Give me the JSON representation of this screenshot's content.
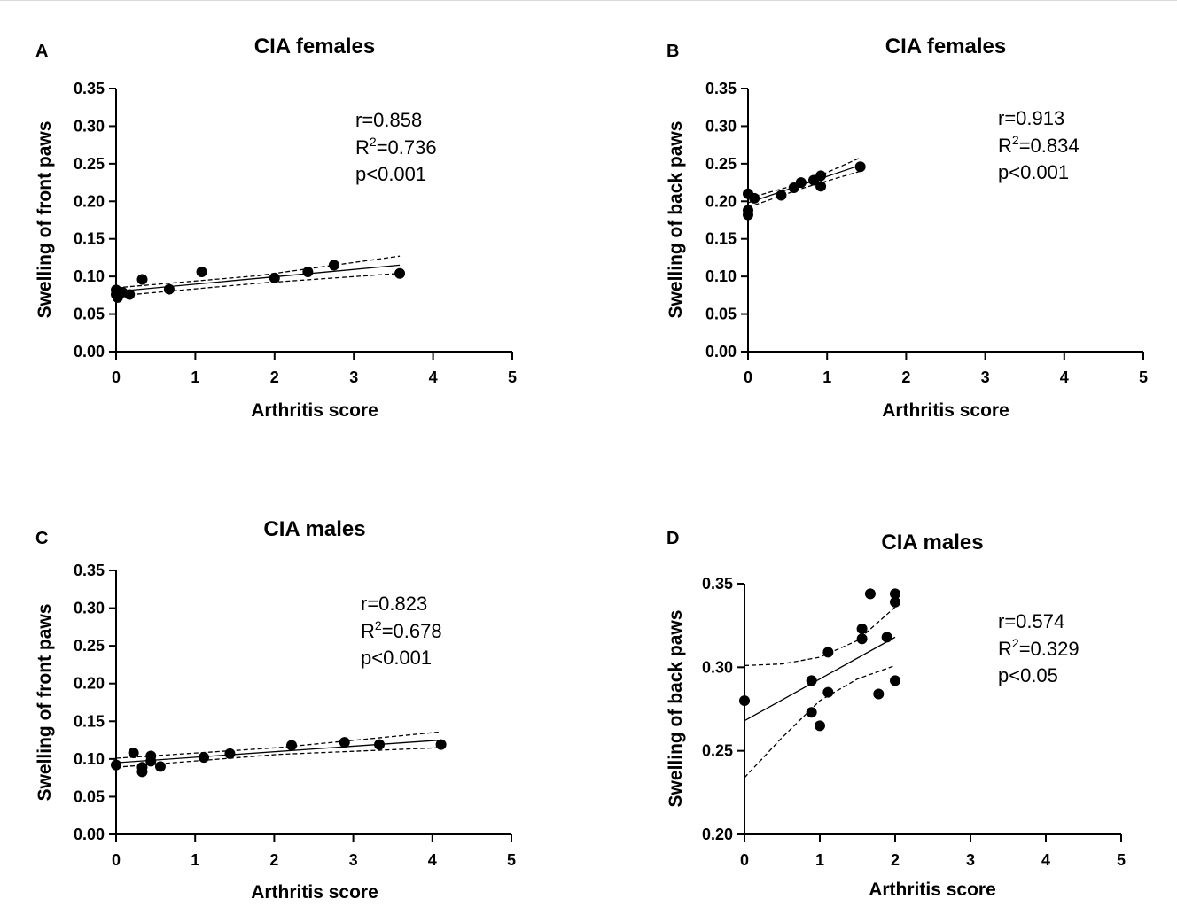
{
  "chart_data": [
    {
      "panel": "A",
      "type": "scatter",
      "title": "CIA females",
      "xlabel": "Arthritis score",
      "ylabel": "Swelling of front paws",
      "xlim": [
        0,
        5
      ],
      "ylim": [
        0,
        0.35
      ],
      "xticks": [
        "0",
        "1",
        "2",
        "3",
        "4",
        "5"
      ],
      "yticks": [
        "0.00",
        "0.05",
        "0.10",
        "0.15",
        "0.20",
        "0.25",
        "0.30",
        "0.35"
      ],
      "stats": {
        "r": "r=0.858",
        "r2_prefix": "R",
        "r2_sup": "2",
        "r2_value": "=0.736",
        "p": "p<0.001"
      },
      "points": [
        {
          "x": 0.0,
          "y": 0.082
        },
        {
          "x": 0.0,
          "y": 0.076
        },
        {
          "x": 0.02,
          "y": 0.072
        },
        {
          "x": 0.08,
          "y": 0.079
        },
        {
          "x": 0.17,
          "y": 0.076
        },
        {
          "x": 0.33,
          "y": 0.096
        },
        {
          "x": 0.67,
          "y": 0.083
        },
        {
          "x": 1.08,
          "y": 0.106
        },
        {
          "x": 2.0,
          "y": 0.098
        },
        {
          "x": 2.42,
          "y": 0.106
        },
        {
          "x": 2.75,
          "y": 0.115
        },
        {
          "x": 3.58,
          "y": 0.104
        }
      ],
      "fit": {
        "x": [
          0,
          3.58
        ],
        "y": [
          0.08,
          0.115
        ]
      },
      "ci_upper": [
        {
          "x": 0,
          "y": 0.085
        },
        {
          "x": 1.79,
          "y": 0.101
        },
        {
          "x": 3.58,
          "y": 0.127
        }
      ],
      "ci_lower": [
        {
          "x": 0,
          "y": 0.074
        },
        {
          "x": 1.79,
          "y": 0.091
        },
        {
          "x": 3.58,
          "y": 0.104
        }
      ]
    },
    {
      "panel": "B",
      "type": "scatter",
      "title": "CIA females",
      "xlabel": "Arthritis score",
      "ylabel": "Swelling of back paws",
      "xlim": [
        0,
        5
      ],
      "ylim": [
        0,
        0.35
      ],
      "xticks": [
        "0",
        "1",
        "2",
        "3",
        "4",
        "5"
      ],
      "yticks": [
        "0.00",
        "0.05",
        "0.10",
        "0.15",
        "0.20",
        "0.25",
        "0.30",
        "0.35"
      ],
      "stats": {
        "r": "r=0.913",
        "r2_prefix": "R",
        "r2_sup": "2",
        "r2_value": "=0.834",
        "p": "p<0.001"
      },
      "points": [
        {
          "x": 0.0,
          "y": 0.21
        },
        {
          "x": 0.0,
          "y": 0.188
        },
        {
          "x": 0.0,
          "y": 0.182
        },
        {
          "x": 0.08,
          "y": 0.204
        },
        {
          "x": 0.42,
          "y": 0.208
        },
        {
          "x": 0.58,
          "y": 0.218
        },
        {
          "x": 0.67,
          "y": 0.225
        },
        {
          "x": 0.83,
          "y": 0.228
        },
        {
          "x": 0.92,
          "y": 0.234
        },
        {
          "x": 0.92,
          "y": 0.22
        },
        {
          "x": 1.42,
          "y": 0.246
        }
      ],
      "fit": {
        "x": [
          0,
          1.42
        ],
        "y": [
          0.198,
          0.248
        ]
      },
      "ci_upper": [
        {
          "x": 0,
          "y": 0.204
        },
        {
          "x": 0.71,
          "y": 0.225
        },
        {
          "x": 1.42,
          "y": 0.258
        }
      ],
      "ci_lower": [
        {
          "x": 0,
          "y": 0.192
        },
        {
          "x": 0.71,
          "y": 0.218
        },
        {
          "x": 1.42,
          "y": 0.24
        }
      ]
    },
    {
      "panel": "C",
      "type": "scatter",
      "title": "CIA males",
      "xlabel": "Arthritis score",
      "ylabel": "Swelling of front paws",
      "xlim": [
        0,
        5
      ],
      "ylim": [
        0,
        0.35
      ],
      "xticks": [
        "0",
        "1",
        "2",
        "3",
        "4",
        "5"
      ],
      "yticks": [
        "0.00",
        "0.05",
        "0.10",
        "0.15",
        "0.20",
        "0.25",
        "0.30",
        "0.35"
      ],
      "stats": {
        "r": "r=0.823",
        "r2_prefix": "R",
        "r2_sup": "2",
        "r2_value": "=0.678",
        "p": "p<0.001"
      },
      "points": [
        {
          "x": 0.0,
          "y": 0.092
        },
        {
          "x": 0.22,
          "y": 0.108
        },
        {
          "x": 0.33,
          "y": 0.089
        },
        {
          "x": 0.33,
          "y": 0.083
        },
        {
          "x": 0.44,
          "y": 0.104
        },
        {
          "x": 0.44,
          "y": 0.097
        },
        {
          "x": 0.56,
          "y": 0.09
        },
        {
          "x": 1.11,
          "y": 0.102
        },
        {
          "x": 1.44,
          "y": 0.107
        },
        {
          "x": 2.22,
          "y": 0.118
        },
        {
          "x": 2.89,
          "y": 0.122
        },
        {
          "x": 3.33,
          "y": 0.119
        },
        {
          "x": 4.11,
          "y": 0.119
        }
      ],
      "fit": {
        "x": [
          0,
          4.11
        ],
        "y": [
          0.095,
          0.125
        ]
      },
      "ci_upper": [
        {
          "x": 0,
          "y": 0.101
        },
        {
          "x": 2.05,
          "y": 0.115
        },
        {
          "x": 4.11,
          "y": 0.136
        }
      ],
      "ci_lower": [
        {
          "x": 0,
          "y": 0.089
        },
        {
          "x": 2.05,
          "y": 0.106
        },
        {
          "x": 4.11,
          "y": 0.115
        }
      ]
    },
    {
      "panel": "D",
      "type": "scatter",
      "title": "CIA males",
      "xlabel": "Arthritis score",
      "ylabel": "Swelling of back paws",
      "xlim": [
        0,
        5
      ],
      "ylim": [
        0.2,
        0.35
      ],
      "xticks": [
        "0",
        "1",
        "2",
        "3",
        "4",
        "5"
      ],
      "yticks": [
        "0.20",
        "0.25",
        "0.30",
        "0.35"
      ],
      "stats": {
        "r": "r=0.574",
        "r2_prefix": "R",
        "r2_sup": "2",
        "r2_value": "=0.329",
        "p": "p<0.05"
      },
      "points": [
        {
          "x": 0.0,
          "y": 0.28
        },
        {
          "x": 0.89,
          "y": 0.292
        },
        {
          "x": 0.89,
          "y": 0.273
        },
        {
          "x": 1.0,
          "y": 0.265
        },
        {
          "x": 1.11,
          "y": 0.309
        },
        {
          "x": 1.11,
          "y": 0.285
        },
        {
          "x": 1.56,
          "y": 0.323
        },
        {
          "x": 1.56,
          "y": 0.317
        },
        {
          "x": 1.67,
          "y": 0.344
        },
        {
          "x": 1.78,
          "y": 0.284
        },
        {
          "x": 1.89,
          "y": 0.318
        },
        {
          "x": 2.0,
          "y": 0.344
        },
        {
          "x": 2.0,
          "y": 0.339
        },
        {
          "x": 2.0,
          "y": 0.292
        }
      ],
      "fit": {
        "x": [
          0,
          2.0
        ],
        "y": [
          0.268,
          0.318
        ]
      },
      "ci_upper": [
        {
          "x": 0,
          "y": 0.301
        },
        {
          "x": 0.5,
          "y": 0.302
        },
        {
          "x": 1.0,
          "y": 0.306
        },
        {
          "x": 1.5,
          "y": 0.316
        },
        {
          "x": 2.0,
          "y": 0.336
        }
      ],
      "ci_lower": [
        {
          "x": 0,
          "y": 0.234
        },
        {
          "x": 0.5,
          "y": 0.258
        },
        {
          "x": 1.0,
          "y": 0.28
        },
        {
          "x": 1.5,
          "y": 0.293
        },
        {
          "x": 2.0,
          "y": 0.301
        }
      ]
    }
  ]
}
